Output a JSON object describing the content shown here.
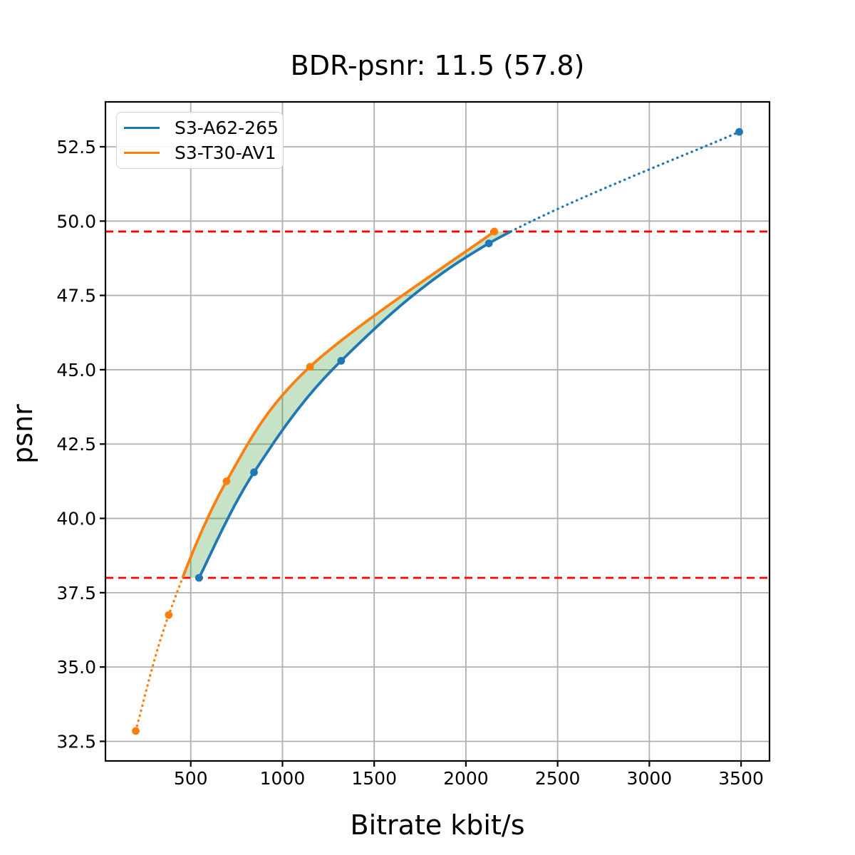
{
  "chart": {
    "title": "BDR-psnr: 11.5 (57.8)",
    "xlabel": "Bitrate kbit/s",
    "ylabel": "psnr"
  },
  "chart_data": {
    "type": "line",
    "title": "BDR-psnr: 11.5 (57.8)",
    "xlabel": "Bitrate kbit/s",
    "ylabel": "psnr",
    "grid": true,
    "legend_position": "upper left",
    "xlim": [
      35,
      3655
    ],
    "ylim": [
      31.84,
      54.01
    ],
    "x_ticks": [
      500,
      1000,
      1500,
      2000,
      2500,
      3000,
      3500
    ],
    "x_tick_labels": [
      "500",
      "1000",
      "1500",
      "2000",
      "2500",
      "3000",
      "3500"
    ],
    "y_ticks": [
      32.5,
      35.0,
      37.5,
      40.0,
      42.5,
      45.0,
      47.5,
      50.0,
      52.5
    ],
    "y_tick_labels": [
      "32.5",
      "35.0",
      "37.5",
      "40.0",
      "42.5",
      "45.0",
      "47.5",
      "50.0",
      "52.5"
    ],
    "series": [
      {
        "name": "S3-A62-265",
        "color": "#1f77b4",
        "points": [
          [
            545,
            38.0
          ],
          [
            845,
            41.55
          ],
          [
            1320,
            45.3
          ],
          [
            2125,
            49.25
          ],
          [
            3490,
            53.0
          ]
        ]
      },
      {
        "name": "S3-T30-AV1",
        "color": "#ff7f0e",
        "points": [
          [
            200,
            32.85
          ],
          [
            380,
            36.75
          ],
          [
            695,
            41.25
          ],
          [
            1150,
            45.1
          ],
          [
            2155,
            49.65
          ]
        ]
      }
    ],
    "bd_bounds": [
      38.0,
      49.65
    ],
    "bd_line_color": "#ff0000",
    "fill_color": "rgba(0,128,0,0.22)",
    "grid_color": "#b0b0b0",
    "axis_color": "#000000"
  }
}
